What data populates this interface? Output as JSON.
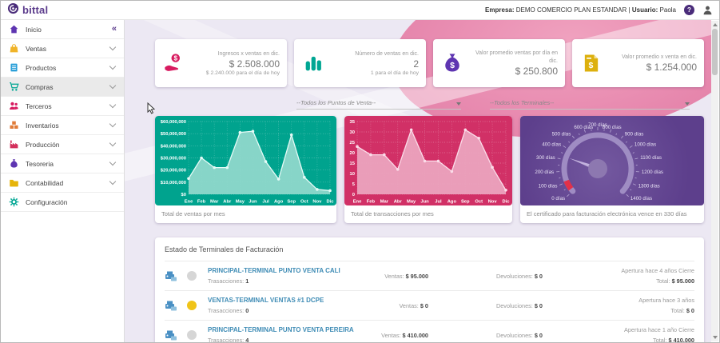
{
  "header": {
    "brand": "bittal",
    "company_label": "Empresa:",
    "company": "DEMO COMERCIO PLAN ESTANDAR",
    "separator": "|",
    "user_label": "Usuario:",
    "user": "Paola",
    "help_glyph": "?"
  },
  "sidebar": {
    "collapse_icon": "«",
    "items": [
      {
        "label": "Inicio",
        "icon": "home-icon",
        "color": "#5e35b1"
      },
      {
        "label": "Ventas",
        "icon": "sales-bag-icon",
        "color": "#f0b429"
      },
      {
        "label": "Productos",
        "icon": "products-icon",
        "color": "#2a9fd8"
      },
      {
        "label": "Compras",
        "icon": "cart-icon",
        "color": "#00a693"
      },
      {
        "label": "Terceros",
        "icon": "people-icon",
        "color": "#d81b60"
      },
      {
        "label": "Inventarios",
        "icon": "inventory-icon",
        "color": "#e07b39"
      },
      {
        "label": "Producción",
        "icon": "production-icon",
        "color": "#d32f5b"
      },
      {
        "label": "Tesoreria",
        "icon": "moneybag-icon",
        "color": "#5e35b1"
      },
      {
        "label": "Contabilidad",
        "icon": "folder-icon",
        "color": "#e6b40a"
      },
      {
        "label": "Configuración",
        "icon": "gear-icon",
        "color": "#00a693"
      }
    ]
  },
  "kpis": [
    {
      "icon": "hand-dollar-icon",
      "color": "#d81b60",
      "title": "Ingresos x ventas en dic.",
      "value": "$ 2.508.000",
      "subtitle": "$ 2.240.000 para el día de hoy"
    },
    {
      "icon": "bar-chart-icon",
      "color": "#00a693",
      "title": "Número de ventas en dic.",
      "value": "2",
      "subtitle": "1 para el día de hoy"
    },
    {
      "icon": "money-bag-icon",
      "color": "#5e35b1",
      "title": "Valor promedio ventas por día en dic.",
      "value": "$ 250.800",
      "subtitle": ""
    },
    {
      "icon": "invoice-icon",
      "color": "#ddb00d",
      "title": "Valor promedio x venta en dic.",
      "value": "$ 1.254.000",
      "subtitle": ""
    }
  ],
  "filters": [
    {
      "value": "--Todos los Puntos de Venta--"
    },
    {
      "value": "--Todos los Terminales--"
    }
  ],
  "chart_data": [
    {
      "type": "area",
      "title": "Total de ventas por mes",
      "categories": [
        "Ene",
        "Feb",
        "Mar",
        "Abr",
        "May",
        "Jun",
        "Jul",
        "Ago",
        "Sep",
        "Oct",
        "Nov",
        "Dic"
      ],
      "values": [
        13000000,
        30000000,
        22000000,
        22000000,
        51000000,
        52000000,
        27000000,
        12500000,
        49000000,
        14000000,
        4000000,
        3000000
      ],
      "ylim": [
        0,
        60000000
      ],
      "ytick_labels": [
        "$0",
        "$10,000,000",
        "$20,000,000",
        "$30,000,000",
        "$40,000,000",
        "$50,000,000",
        "$60,000,000"
      ],
      "grid": "dotted",
      "bg": "#00a38e",
      "fill": "#93d9cd",
      "line": "#e4faf6",
      "label_color": "#ffffff"
    },
    {
      "type": "area",
      "title": "Total de transacciones por mes",
      "categories": [
        "Ene",
        "Feb",
        "Mar",
        "Abr",
        "May",
        "Jun",
        "Jul",
        "Ago",
        "Sep",
        "Oct",
        "Nov",
        "Dic"
      ],
      "values": [
        23,
        19,
        19,
        12,
        31,
        16,
        16,
        11,
        31,
        27,
        13,
        2
      ],
      "ylim": [
        0,
        35
      ],
      "ytick_labels": [
        "0",
        "5",
        "10",
        "15",
        "20",
        "25",
        "30",
        "35"
      ],
      "grid": "dotted",
      "bg": "#d13066",
      "fill": "#eba7c0",
      "line": "#fbdce9",
      "label_color": "#ffffff"
    },
    {
      "type": "gauge",
      "title": "El certificado para facturación electrónica vence en 330 días",
      "value": 330,
      "min": 0,
      "max": 1400,
      "tick_labels": [
        "0 días",
        "100 días",
        "200 días",
        "300 días",
        "400 días",
        "500 días",
        "600 días",
        "700 días",
        "800 días",
        "900 días",
        "1000 días",
        "1100 días",
        "1200 días",
        "1300 días",
        "1400 días"
      ],
      "bg": "#5d3f8c",
      "track_color": "#a593c8",
      "alert_color": "#e23049",
      "needle_color": "#c2b1dd",
      "hub_color": "#8d78b0",
      "label_color": "#e9e3f5"
    }
  ],
  "terminals": {
    "section_title": "Estado de Terminales de Facturación",
    "rows": [
      {
        "icon": "pos-terminal-icon",
        "status_color": "#d6d6d6",
        "name": "PRINCIPAL-TERMINAL PUNTO VENTA CALI",
        "transactions_label": "Trasacciones:",
        "transactions": "1",
        "ventas_label": "Ventas:",
        "ventas": "$ 95.000",
        "devoluciones_label": "Devoluciones:",
        "devoluciones": "$ 0",
        "apertura": "Apertura hace 4 años Cierre",
        "total_label": "Total:",
        "total": "$ 95.000"
      },
      {
        "icon": "pos-terminal-icon",
        "status_color": "#f0c419",
        "name": "VENTAS-TERMINAL VENTAS #1 DCPE",
        "transactions_label": "Trasacciones:",
        "transactions": "0",
        "ventas_label": "Ventas:",
        "ventas": "$ 0",
        "devoluciones_label": "Devoluciones:",
        "devoluciones": "$ 0",
        "apertura": "Apertura hace 3 años",
        "total_label": "Total:",
        "total": "$ 0"
      },
      {
        "icon": "pos-terminal-icon",
        "status_color": "#d6d6d6",
        "name": "PRINCIPAL-TERMINAL PUNTO VENTA PEREIRA",
        "transactions_label": "Trasacciones:",
        "transactions": "4",
        "ventas_label": "Ventas:",
        "ventas": "$ 410.000",
        "devoluciones_label": "Devoluciones:",
        "devoluciones": "$ 0",
        "apertura": "Apertura hace 1 año Cierre",
        "total_label": "Total:",
        "total": "$ 410.000"
      }
    ]
  }
}
